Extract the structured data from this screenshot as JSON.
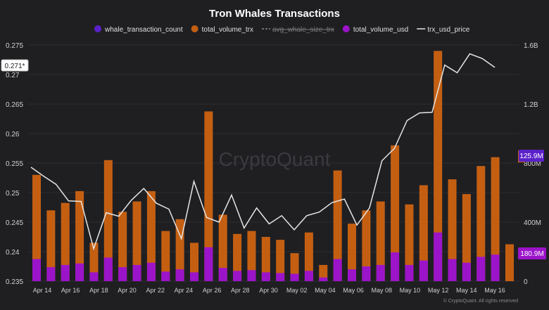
{
  "chart_data": {
    "type": "bar",
    "title": "Tron Whales Transactions",
    "watermark": "CryptoQuant",
    "footer": "© CryptoQuant. All rights reserved",
    "legend": [
      {
        "name": "whale_transaction_count",
        "style": "dot",
        "color": "#5b21c9"
      },
      {
        "name": "total_volume_trx",
        "style": "dot",
        "color": "#c45f12"
      },
      {
        "name": "avg_whale_size_trx",
        "style": "dash",
        "color": "#8a8a8a",
        "disabled": true
      },
      {
        "name": "total_volume_usd",
        "style": "dot",
        "color": "#9b14c9"
      },
      {
        "name": "trx_usd_price",
        "style": "line",
        "color": "#e6e6e6"
      }
    ],
    "x_tick_labels": [
      "Apr 14",
      "Apr 16",
      "Apr 18",
      "Apr 20",
      "Apr 22",
      "Apr 24",
      "Apr 26",
      "Apr 28",
      "Apr 30",
      "May 02",
      "May 04",
      "May 06",
      "May 08",
      "May 10",
      "May 12",
      "May 14",
      "May 16"
    ],
    "left_axis": {
      "ticks": [
        "0.275",
        "0.27",
        "0.265",
        "0.26",
        "0.255",
        "0.25",
        "0.245",
        "0.24",
        "0.235"
      ],
      "range": [
        0.235,
        0.275
      ]
    },
    "right_axis": {
      "ticks": [
        "1.6B",
        "1.2B",
        "800M",
        "400M",
        "0"
      ],
      "range": [
        0,
        1600000000
      ]
    },
    "current_price_label": "0.271*",
    "value_tags": [
      {
        "text": "125.9M",
        "color": "#5b21c9",
        "accent": "#c45f12"
      },
      {
        "text": "180.9M",
        "color": "#9b14c9"
      }
    ],
    "series": [
      {
        "name": "total_volume_trx",
        "color": "#c45f12",
        "values": [
          720000000,
          480000000,
          530000000,
          610000000,
          260000000,
          820000000,
          470000000,
          540000000,
          610000000,
          340000000,
          420000000,
          260000000,
          1150000000,
          450000000,
          320000000,
          340000000,
          300000000,
          280000000,
          190000000,
          330000000,
          110000000,
          750000000,
          390000000,
          480000000,
          540000000,
          920000000,
          520000000,
          650000000,
          1560000000,
          690000000,
          590000000,
          780000000,
          840000000,
          250000000
        ]
      },
      {
        "name": "total_volume_usd",
        "color": "#9b14c9",
        "values": [
          150000000,
          95000000,
          110000000,
          120000000,
          60000000,
          160000000,
          95000000,
          110000000,
          125000000,
          65000000,
          80000000,
          60000000,
          230000000,
          90000000,
          70000000,
          75000000,
          60000000,
          55000000,
          50000000,
          70000000,
          25000000,
          150000000,
          80000000,
          100000000,
          110000000,
          195000000,
          110000000,
          140000000,
          330000000,
          150000000,
          125000000,
          165000000,
          180000000,
          0
        ]
      },
      {
        "name": "trx_usd_price",
        "color": "#e6e6e6",
        "values": [
          0.2543,
          0.2528,
          0.2514,
          0.2486,
          0.2485,
          0.2405,
          0.2466,
          0.246,
          0.2487,
          0.2507,
          0.2482,
          0.2472,
          0.2422,
          0.2519,
          0.2458,
          0.245,
          0.2496,
          0.244,
          0.2474,
          0.2447,
          0.2461,
          0.2437,
          0.2461,
          0.2467,
          0.2483,
          0.2489,
          0.2445,
          0.2474,
          0.2554,
          0.2575,
          0.2622,
          0.2635,
          0.2636,
          0.2716,
          0.2703,
          0.2735,
          0.2727,
          0.2712
        ]
      }
    ]
  }
}
